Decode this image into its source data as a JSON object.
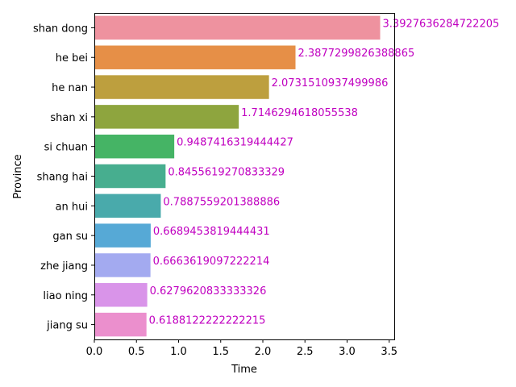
{
  "chart_data": {
    "type": "bar",
    "orientation": "horizontal",
    "title": "",
    "xlabel": "Time",
    "ylabel": "Province",
    "xlim": [
      0,
      3.56
    ],
    "x_ticks": [
      "0.0",
      "0.5",
      "1.0",
      "1.5",
      "2.0",
      "2.5",
      "3.0",
      "3.5"
    ],
    "x_tick_values": [
      0.0,
      0.5,
      1.0,
      1.5,
      2.0,
      2.5,
      3.0,
      3.5
    ],
    "grid": false,
    "legend": "none",
    "label_color": "#c000c0",
    "categories": [
      "shan dong",
      "he bei",
      "he nan",
      "shan xi",
      "si chuan",
      "shang hai",
      "an hui",
      "gan su",
      "zhe jiang",
      "liao ning",
      "jiang su"
    ],
    "values": [
      3.3927636284722205,
      2.3877299826388865,
      2.0731510937499986,
      1.7146294618055538,
      0.9487416319444427,
      0.8455619270833329,
      0.7887559201388886,
      0.6689453819444431,
      0.6663619097222214,
      0.6279620833333326,
      0.6188122222222215
    ],
    "value_labels": [
      "3.3927636284722205",
      "2.3877299826388865",
      "2.0731510937499986",
      "1.7146294618055538",
      "0.9487416319444427",
      "0.8455619270833329",
      "0.7887559201388886",
      "0.6689453819444431",
      "0.6663619097222214",
      "0.6279620833333326",
      "0.6188122222222215"
    ],
    "colors": [
      "#ee929f",
      "#e68f47",
      "#bd9f3e",
      "#8ea53e",
      "#45b465",
      "#47ae8f",
      "#49aaab",
      "#56a9d6",
      "#a3aaf0",
      "#d994e9",
      "#eb8fcd"
    ]
  }
}
